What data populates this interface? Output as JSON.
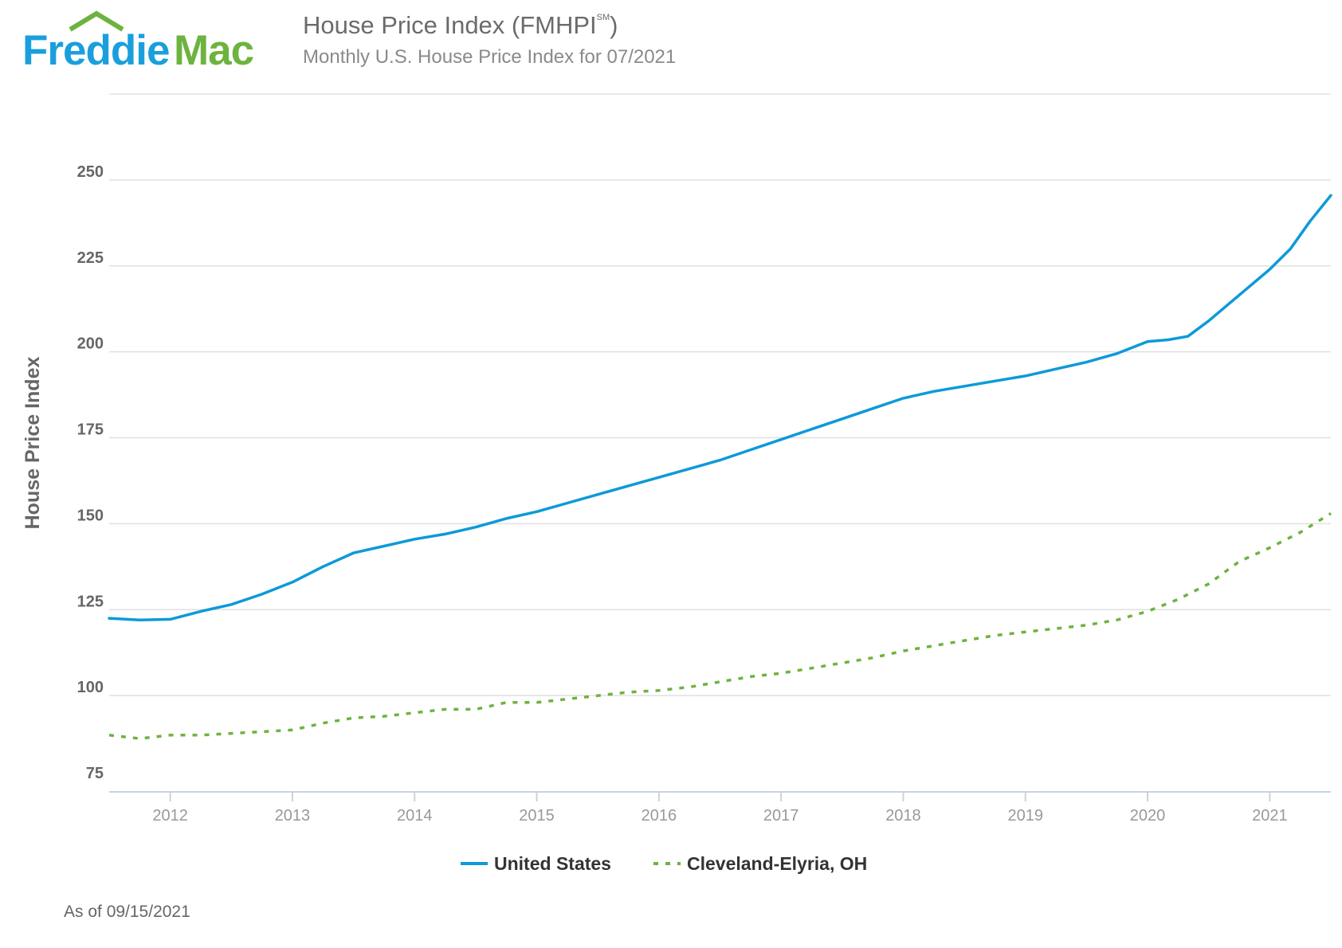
{
  "header": {
    "logo_text_1": "Freddie",
    "logo_text_2": "Mac",
    "title": "House Price Index (FMHPI",
    "title_sup": "SM",
    "title_end": ")",
    "subtitle": "Monthly U.S. House Price Index for 07/2021"
  },
  "footer": {
    "as_of": "As of 09/15/2021"
  },
  "colors": {
    "us": "#0d9ad8",
    "cleveland": "#6db33f",
    "logo_blue": "#1a9fdc",
    "logo_green": "#6db33f"
  },
  "chart_data": {
    "type": "line",
    "title": "House Price Index (FMHPI℠)",
    "subtitle": "Monthly U.S. House Price Index for 07/2021",
    "ylabel": "House Price Index",
    "xlabel": "",
    "ylim": [
      72,
      275
    ],
    "xlim": [
      2011.5,
      2021.5
    ],
    "yticks": [
      75,
      100,
      125,
      150,
      175,
      200,
      225,
      250
    ],
    "xticks": [
      "2012",
      "2013",
      "2014",
      "2015",
      "2016",
      "2017",
      "2018",
      "2019",
      "2020",
      "2021"
    ],
    "grid": true,
    "legend": "bottom-center",
    "series": [
      {
        "name": "United States",
        "style": "solid",
        "x": [
          2011.5,
          2011.75,
          2012.0,
          2012.25,
          2012.5,
          2012.75,
          2013.0,
          2013.25,
          2013.5,
          2013.75,
          2014.0,
          2014.25,
          2014.5,
          2014.75,
          2015.0,
          2015.25,
          2015.5,
          2015.75,
          2016.0,
          2016.25,
          2016.5,
          2016.75,
          2017.0,
          2017.25,
          2017.5,
          2017.75,
          2018.0,
          2018.25,
          2018.5,
          2018.75,
          2019.0,
          2019.25,
          2019.5,
          2019.75,
          2020.0,
          2020.17,
          2020.33,
          2020.5,
          2020.75,
          2021.0,
          2021.17,
          2021.33,
          2021.5
        ],
        "values": [
          122.5,
          122.0,
          122.2,
          124.5,
          126.5,
          129.5,
          133.0,
          137.5,
          141.5,
          143.5,
          145.5,
          147.0,
          149.0,
          151.5,
          153.5,
          156.0,
          158.5,
          161.0,
          163.5,
          166.0,
          168.5,
          171.5,
          174.5,
          177.5,
          180.5,
          183.5,
          186.5,
          188.5,
          190.0,
          191.5,
          193.0,
          195.0,
          197.0,
          199.5,
          203.0,
          203.5,
          204.5,
          209.0,
          216.5,
          224.0,
          230.0,
          238.0,
          245.5
        ]
      },
      {
        "name": "Cleveland-Elyria, OH",
        "style": "dashed",
        "x": [
          2011.5,
          2011.75,
          2012.0,
          2012.25,
          2012.5,
          2012.75,
          2013.0,
          2013.25,
          2013.5,
          2013.75,
          2014.0,
          2014.25,
          2014.5,
          2014.75,
          2015.0,
          2015.25,
          2015.5,
          2015.75,
          2016.0,
          2016.25,
          2016.5,
          2016.75,
          2017.0,
          2017.25,
          2017.5,
          2017.75,
          2018.0,
          2018.25,
          2018.5,
          2018.75,
          2019.0,
          2019.25,
          2019.5,
          2019.75,
          2020.0,
          2020.25,
          2020.5,
          2020.75,
          2021.0,
          2021.25,
          2021.5
        ],
        "values": [
          88.5,
          87.5,
          88.5,
          88.5,
          89.0,
          89.5,
          90.0,
          92.0,
          93.5,
          94.0,
          95.0,
          96.0,
          96.0,
          98.0,
          98.0,
          99.0,
          100.0,
          101.0,
          101.5,
          102.5,
          104.0,
          105.5,
          106.5,
          108.0,
          109.5,
          111.0,
          113.0,
          114.5,
          116.0,
          117.5,
          118.5,
          119.5,
          120.5,
          122.0,
          124.5,
          128.0,
          132.5,
          139.0,
          143.0,
          147.5,
          153.0
        ]
      }
    ]
  }
}
